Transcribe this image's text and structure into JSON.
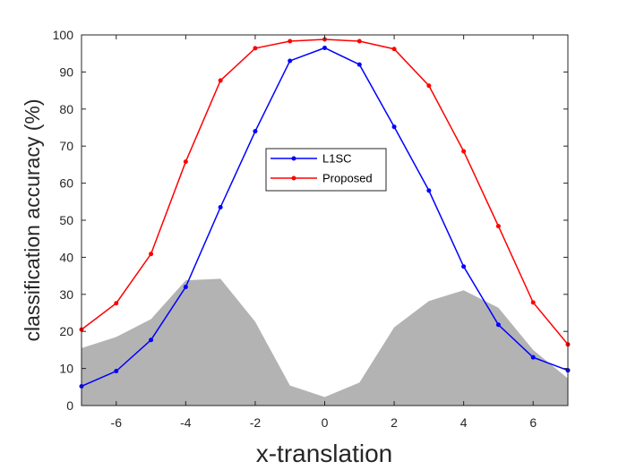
{
  "chart_data": {
    "type": "line",
    "xlabel": "x-translation",
    "ylabel": "classification accuracy (%)",
    "xlim": [
      -7,
      7
    ],
    "ylim": [
      0,
      100
    ],
    "xticks": [
      -6,
      -4,
      -2,
      0,
      2,
      4,
      6
    ],
    "yticks": [
      0,
      10,
      20,
      30,
      40,
      50,
      60,
      70,
      80,
      90,
      100
    ],
    "grid": false,
    "legend_position": "center",
    "x": [
      -7,
      -6,
      -5,
      -4,
      -3,
      -2,
      -1,
      0,
      1,
      2,
      3,
      4,
      5,
      6,
      7
    ],
    "series": [
      {
        "name": "L1SC",
        "color": "#0000ff",
        "values": [
          5.2,
          9.3,
          17.7,
          32.0,
          53.5,
          74.0,
          93.0,
          96.5,
          92.0,
          75.2,
          58.0,
          37.5,
          21.8,
          13.0,
          9.5
        ]
      },
      {
        "name": "Proposed",
        "color": "#ff0000",
        "values": [
          20.5,
          27.6,
          40.9,
          65.8,
          87.7,
          96.4,
          98.3,
          98.8,
          98.3,
          96.2,
          86.3,
          68.6,
          48.4,
          27.8,
          16.5
        ]
      }
    ],
    "background_area": {
      "color": "#b3b3b3",
      "values": [
        15.5,
        18.5,
        23.3,
        33.8,
        34.2,
        22.6,
        5.4,
        2.3,
        6.2,
        21.1,
        28.2,
        31.1,
        26.4,
        15.0,
        7.3
      ]
    }
  }
}
